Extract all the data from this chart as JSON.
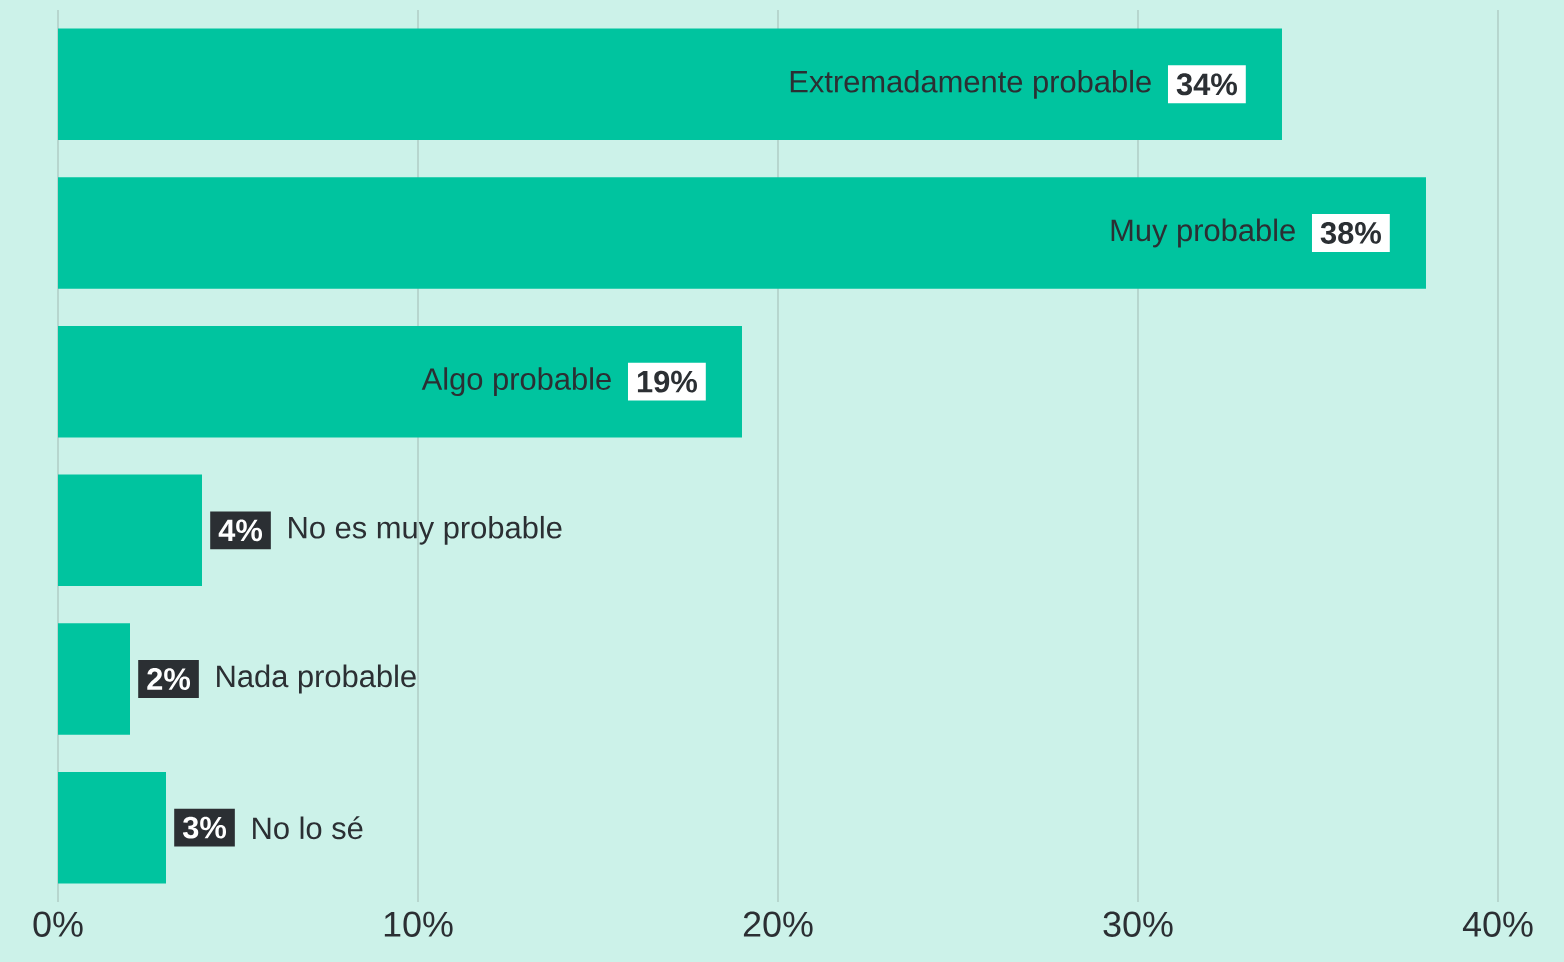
{
  "chart_data": {
    "type": "bar",
    "orientation": "horizontal",
    "categories": [
      "Extremadamente probable",
      "Muy probable",
      "Algo probable",
      "No es muy probable",
      "Nada probable",
      "No lo sé"
    ],
    "values": [
      34,
      38,
      19,
      4,
      2,
      3
    ],
    "value_labels": [
      "34%",
      "38%",
      "19%",
      "4%",
      "2%",
      "3%"
    ],
    "color": "#00c49f",
    "xlim": [
      0,
      40
    ],
    "xticks": [
      {
        "value": 0,
        "label": "0%"
      },
      {
        "value": 10,
        "label": "10%"
      },
      {
        "value": 20,
        "label": "20%"
      },
      {
        "value": 30,
        "label": "30%"
      },
      {
        "value": 40,
        "label": "40%"
      }
    ],
    "grid": "x",
    "tick_labels": "x"
  }
}
